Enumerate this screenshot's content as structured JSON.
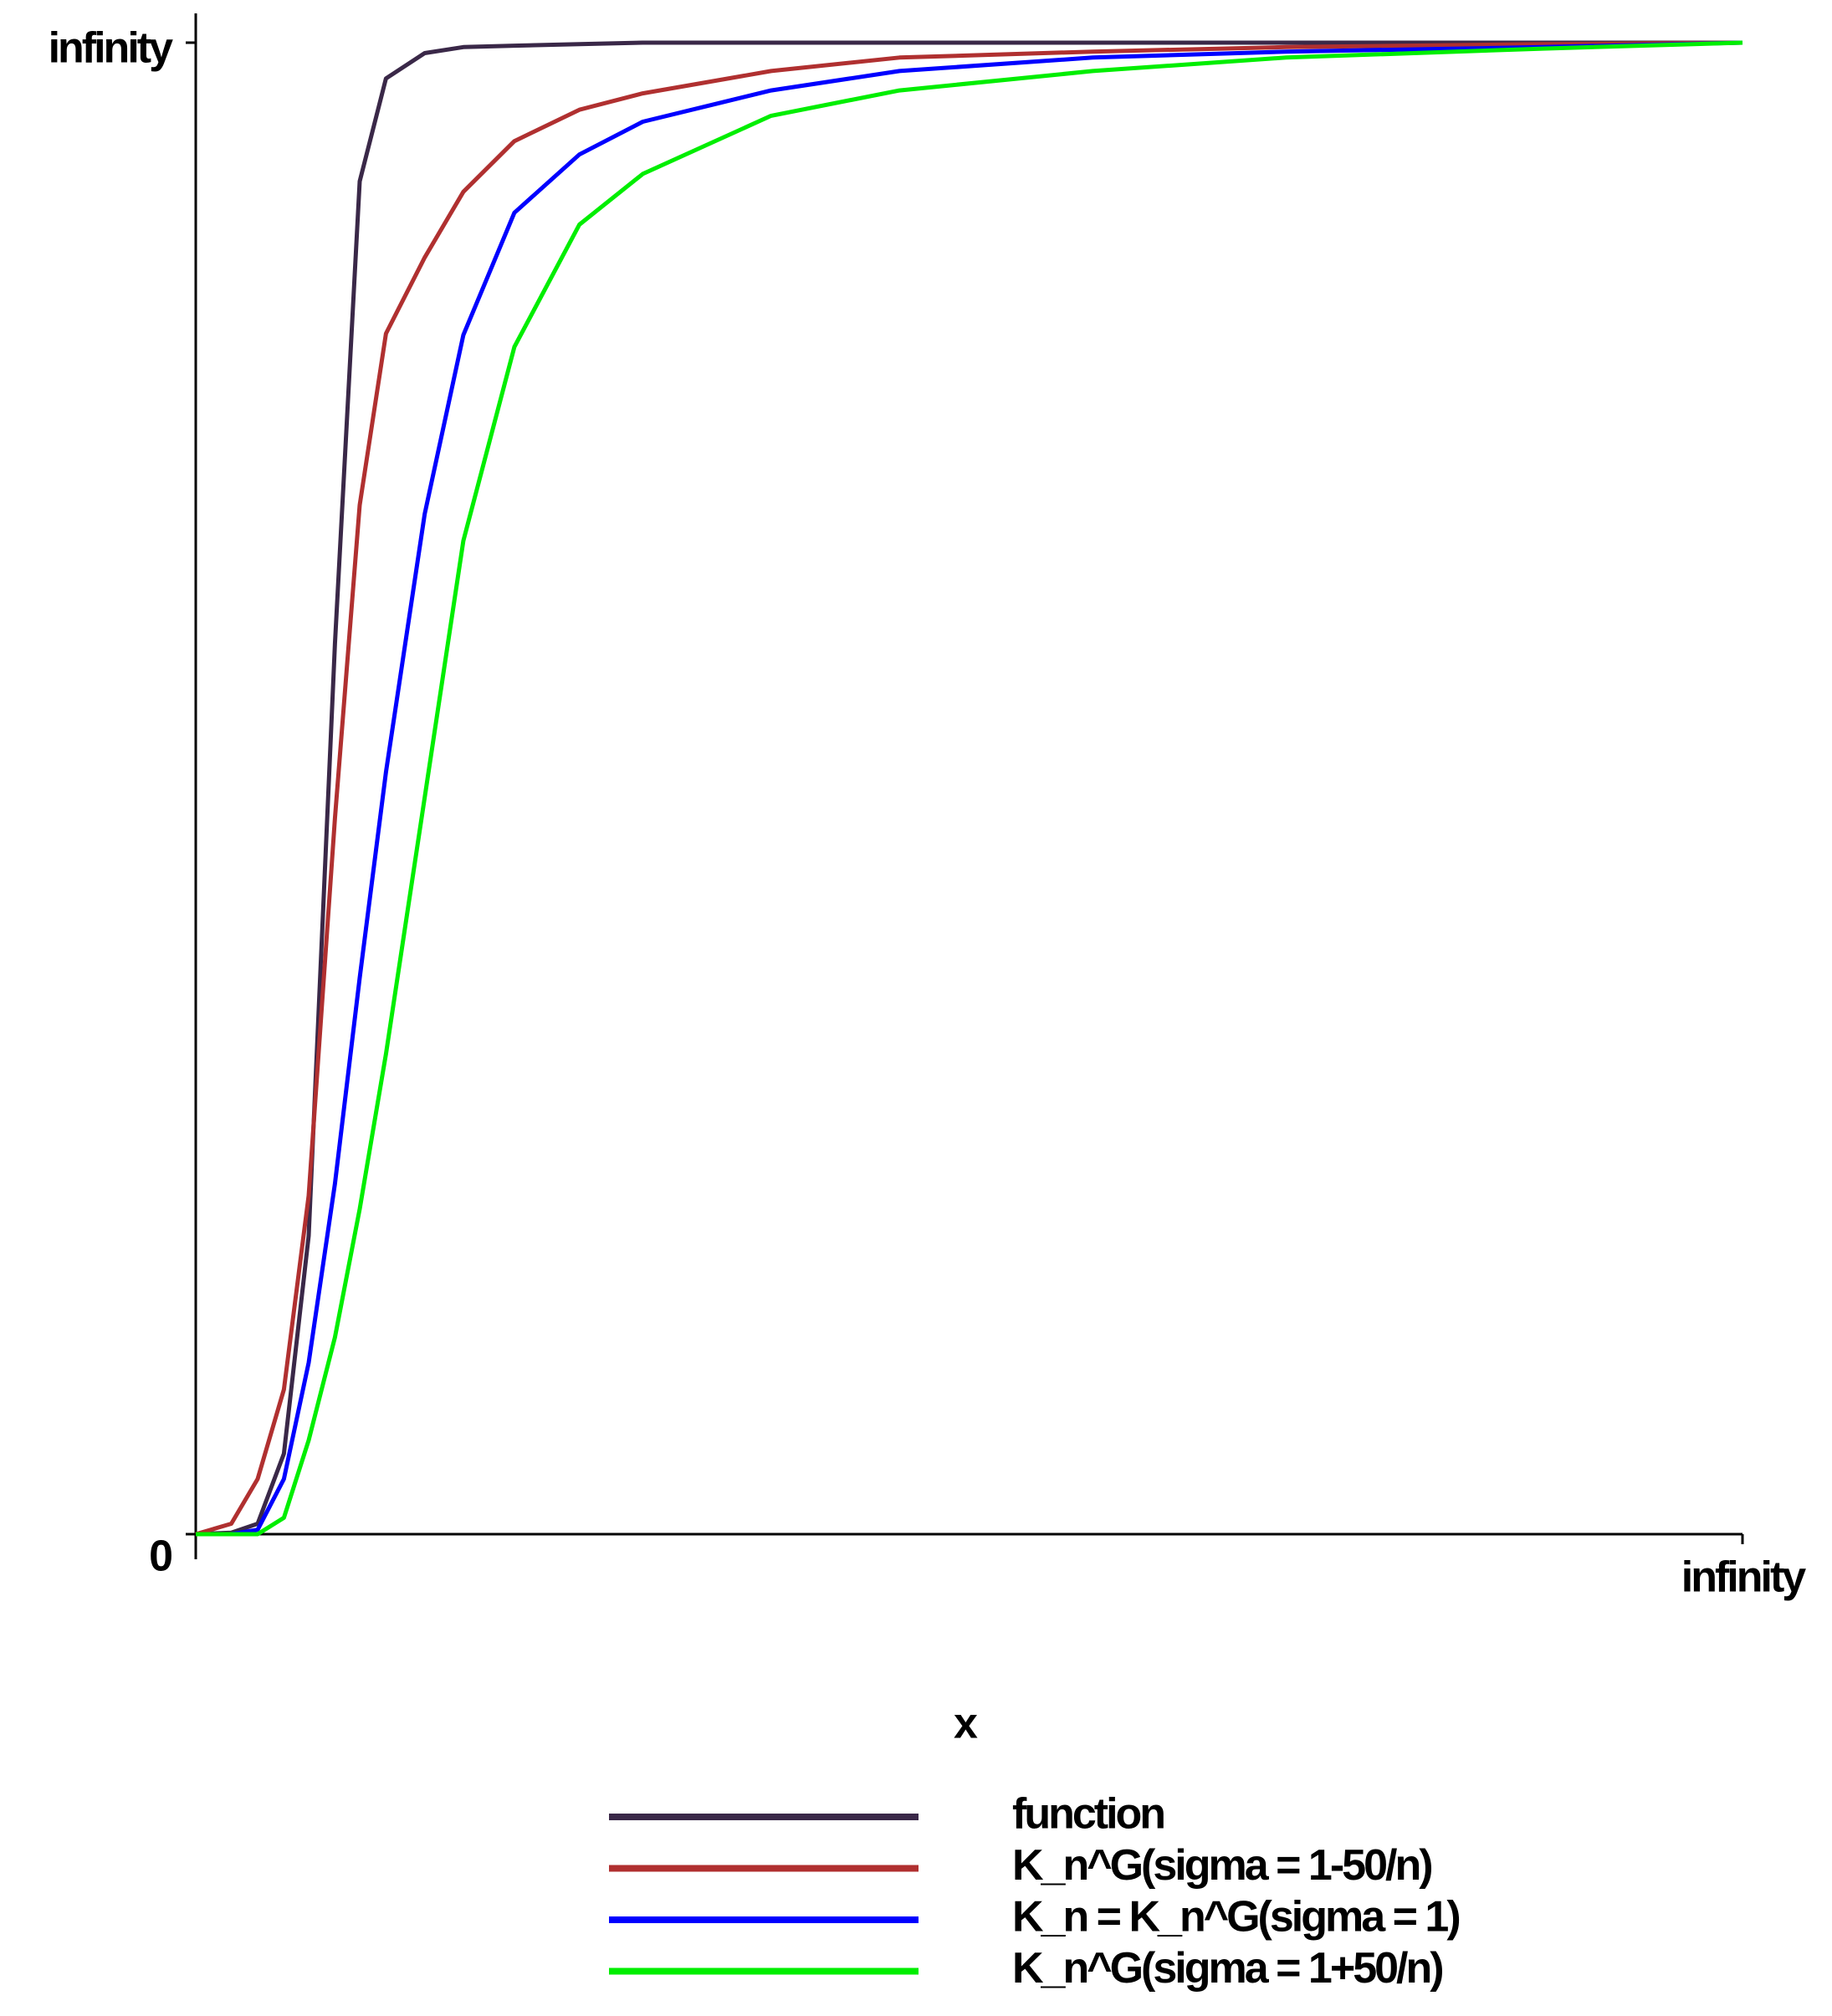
{
  "chart_data": {
    "type": "line",
    "x_label": "x",
    "xlim": [
      0,
      1
    ],
    "ylim": [
      0,
      1
    ],
    "xticks": [
      {
        "value": 1,
        "label": "infinity"
      }
    ],
    "yticks": [
      0,
      {
        "value": 1,
        "label": "infinity"
      }
    ],
    "legend": "bottom",
    "x": [
      0,
      0.023,
      0.04,
      0.057,
      0.073,
      0.09,
      0.106,
      0.123,
      0.148,
      0.173,
      0.206,
      0.248,
      0.289,
      0.372,
      0.455,
      0.58,
      0.705,
      0.871,
      1
    ],
    "series": [
      {
        "name": "function",
        "color": "#3a2848",
        "values": [
          0,
          0.001,
          0.007,
          0.054,
          0.2,
          0.597,
          0.907,
          0.976,
          0.993,
          0.997,
          0.998,
          0.999,
          1,
          1,
          1,
          1,
          1,
          1,
          1
        ]
      },
      {
        "name": "K_n^G(sigma = 1-50/n)",
        "color": "#b03030",
        "values": [
          0,
          0.007,
          0.037,
          0.097,
          0.227,
          0.48,
          0.69,
          0.805,
          0.856,
          0.9,
          0.934,
          0.955,
          0.966,
          0.981,
          0.99,
          0.994,
          0.997,
          0.999,
          1
        ]
      },
      {
        "name": "K_n = K_n^G(sigma = 1)",
        "color": "#0000ff",
        "values": [
          0,
          0,
          0.003,
          0.037,
          0.115,
          0.235,
          0.373,
          0.511,
          0.684,
          0.804,
          0.886,
          0.925,
          0.947,
          0.968,
          0.981,
          0.99,
          0.994,
          0.997,
          1
        ]
      },
      {
        "name": "K_n^G(sigma = 1+50/n)",
        "color": "#00ee00",
        "values": [
          0,
          0,
          0,
          0.011,
          0.063,
          0.132,
          0.218,
          0.322,
          0.494,
          0.666,
          0.796,
          0.878,
          0.912,
          0.951,
          0.968,
          0.981,
          0.99,
          0.996,
          1
        ]
      }
    ]
  }
}
